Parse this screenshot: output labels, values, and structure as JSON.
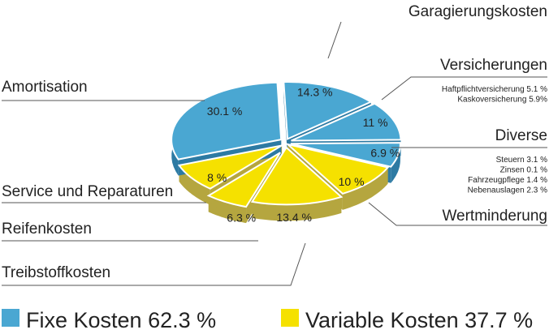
{
  "chart_data": {
    "type": "pie",
    "title": "",
    "colors": {
      "fixed": "#4aa7d2",
      "fixed_side": "#2d7aa3",
      "variable": "#f5e100",
      "variable_side": "#b5a63f",
      "stroke": "#ffffff"
    },
    "slices": [
      {
        "label": "Garagierungskosten",
        "value": 14.3,
        "value_label": "14.3 %",
        "group": "fixed"
      },
      {
        "label": "Versicherungen",
        "value": 11,
        "value_label": "11 %",
        "group": "fixed",
        "details": [
          "Haftpflichtversicherung 5.1 %",
          "Kaskoversicherung 5.9%"
        ]
      },
      {
        "label": "Diverse",
        "value": 6.9,
        "value_label": "6.9 %",
        "group": "fixed",
        "details": [
          "Steuern 3.1 %",
          "Zinsen 0.1 %",
          "Fahrzeugpflege 1.4 %",
          "Nebenauslagen 2.3 %"
        ]
      },
      {
        "label": "Wertminderung",
        "value": 10,
        "value_label": "10 %",
        "group": "variable"
      },
      {
        "label": "Treibstoffkosten",
        "value": 13.4,
        "value_label": "13.4 %",
        "group": "variable"
      },
      {
        "label": "Reifenkosten",
        "value": 6.3,
        "value_label": "6.3 %",
        "group": "variable"
      },
      {
        "label": "Service und Reparaturen",
        "value": 8,
        "value_label": "8 %",
        "group": "variable"
      },
      {
        "label": "Amortisation",
        "value": 30.1,
        "value_label": "30.1 %",
        "group": "fixed"
      }
    ],
    "legend": [
      {
        "label": "Fixe Kosten 62.3 %",
        "group": "fixed"
      },
      {
        "label": "Variable Kosten 37.7 %",
        "group": "variable"
      }
    ],
    "legend_position": "bottom"
  }
}
